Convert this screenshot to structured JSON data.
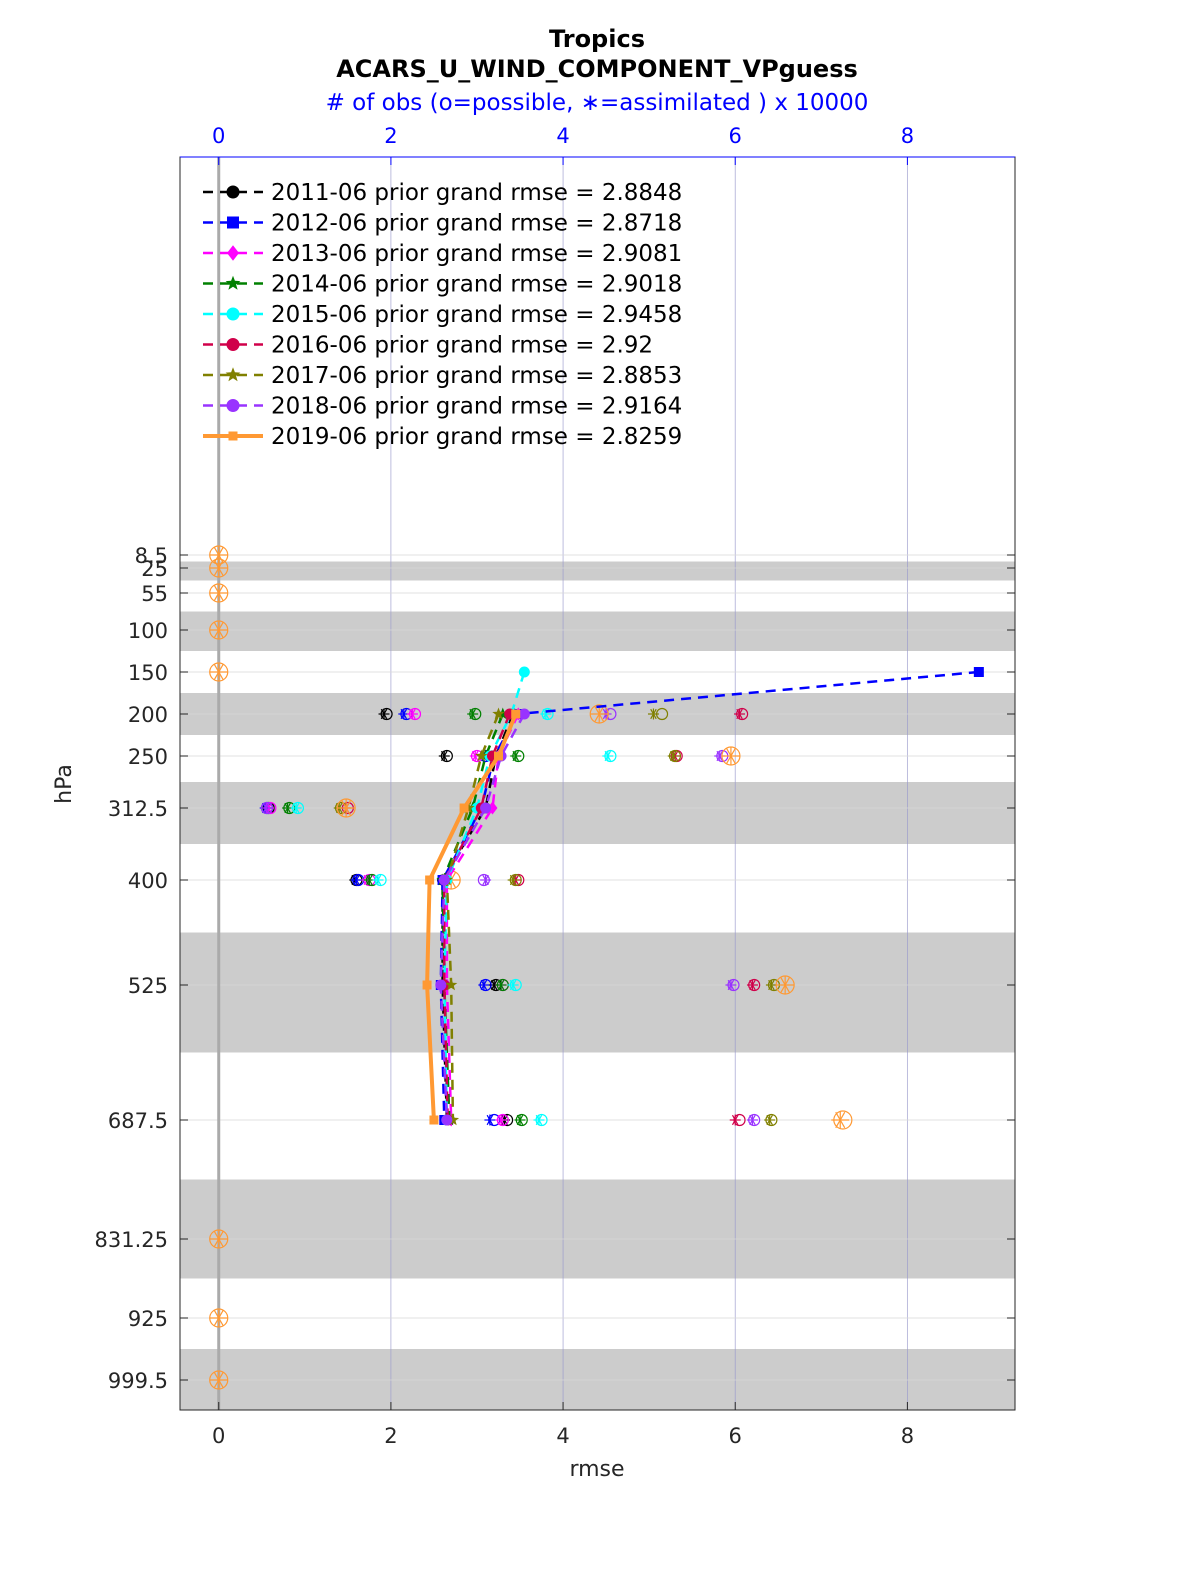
{
  "chart_data": {
    "type": "line",
    "title": "Tropics",
    "subtitle": "ACARS_U_WIND_COMPONENT_VPguess",
    "top_axis_label": "# of obs (o=possible, ∗=assimilated ) x 10000",
    "xlabel": "rmse",
    "ylabel": "hPa",
    "xlim": [
      -0.45,
      9.25
    ],
    "x_ticks": [
      0,
      2,
      4,
      6,
      8
    ],
    "top_xlim": [
      -0.45,
      9.25
    ],
    "top_x_ticks": [
      0,
      2,
      4,
      6,
      8
    ],
    "y_reversed": true,
    "levels": [
      8.5,
      25,
      55,
      100,
      150,
      200,
      250,
      312.5,
      400,
      525,
      687.5,
      831.25,
      925,
      999.5
    ],
    "level_tick_labels": [
      "8.5",
      "25",
      "55",
      "100",
      "150",
      "200",
      "250",
      "312.5",
      "400",
      "525",
      "687.5",
      "831.25",
      "925",
      "999.5"
    ],
    "grid": true,
    "legend_position": "top-left",
    "series": [
      {
        "name": "2011-06 prior grand rmse = 2.8848",
        "color": "#000000",
        "style": "dashed",
        "marker": "circle",
        "rmse_levels": [
          200,
          250,
          312.5,
          400,
          525,
          687.5
        ],
        "rmse": [
          3.42,
          3.22,
          3.1,
          2.6,
          2.6,
          2.65
        ],
        "obs_levels": [
          200,
          250,
          312.5,
          400,
          525,
          687.5
        ],
        "possible": [
          1.95,
          2.65,
          0.58,
          1.6,
          3.22,
          3.35
        ],
        "assimilated": [
          1.92,
          2.62,
          0.56,
          1.58,
          3.2,
          3.32
        ]
      },
      {
        "name": "2012-06 prior grand rmse = 2.8718",
        "color": "#0000ff",
        "style": "dashed",
        "marker": "square",
        "rmse_levels": [
          150,
          200,
          250,
          312.5,
          400,
          525,
          687.5
        ],
        "rmse": [
          8.83,
          3.48,
          3.2,
          3.05,
          2.6,
          2.58,
          2.62
        ],
        "obs_levels": [
          200,
          250,
          312.5,
          400,
          525,
          687.5
        ],
        "possible": [
          2.18,
          3.1,
          0.56,
          1.62,
          3.1,
          3.2
        ],
        "assimilated": [
          2.15,
          3.08,
          0.54,
          1.6,
          3.08,
          3.15
        ]
      },
      {
        "name": "2013-06 prior grand rmse = 2.9081",
        "color": "#ff00ff",
        "style": "dashed",
        "marker": "diamond",
        "rmse_levels": [
          200,
          250,
          312.5,
          400,
          525,
          687.5
        ],
        "rmse": [
          3.48,
          3.25,
          3.18,
          2.65,
          2.65,
          2.7
        ],
        "obs_levels": [
          200,
          250,
          312.5,
          400,
          525,
          687.5
        ],
        "possible": [
          2.28,
          3.0,
          0.6,
          1.75,
          3.3,
          3.3
        ],
        "assimilated": [
          2.25,
          2.98,
          0.58,
          1.72,
          3.28,
          3.28
        ]
      },
      {
        "name": "2014-06 prior grand rmse = 2.9018",
        "color": "#008000",
        "style": "dashed",
        "marker": "star",
        "rmse_levels": [
          200,
          250,
          312.5,
          400,
          525,
          687.5
        ],
        "rmse": [
          3.3,
          3.1,
          2.95,
          2.6,
          2.62,
          2.68
        ],
        "obs_levels": [
          200,
          250,
          312.5,
          400,
          525,
          687.5
        ],
        "possible": [
          2.98,
          3.48,
          0.82,
          1.78,
          3.3,
          3.52
        ],
        "assimilated": [
          2.95,
          3.45,
          0.8,
          1.75,
          3.28,
          3.5
        ]
      },
      {
        "name": "2015-06 prior grand rmse = 2.9458",
        "color": "#00ffff",
        "style": "dashed",
        "marker": "hexagram",
        "rmse_levels": [
          150,
          200,
          250,
          312.5,
          400,
          525,
          687.5
        ],
        "rmse": [
          3.55,
          3.4,
          3.15,
          3.0,
          2.65,
          2.62,
          2.65
        ],
        "obs_levels": [
          200,
          250,
          312.5,
          400,
          525,
          687.5
        ],
        "possible": [
          3.82,
          4.55,
          0.92,
          1.88,
          3.45,
          3.75
        ],
        "assimilated": [
          3.8,
          4.52,
          0.9,
          1.85,
          3.42,
          3.72
        ]
      },
      {
        "name": "2016-06 prior grand rmse = 2.92",
        "color": "#d0004a",
        "style": "dashed",
        "marker": "circle",
        "rmse_levels": [
          200,
          250,
          312.5,
          400,
          525,
          687.5
        ],
        "rmse": [
          3.38,
          3.18,
          3.05,
          2.62,
          2.62,
          2.66
        ],
        "obs_levels": [
          200,
          250,
          312.5,
          400,
          525,
          687.5
        ],
        "possible": [
          6.08,
          5.32,
          1.5,
          3.48,
          6.22,
          6.05
        ],
        "assimilated": [
          6.05,
          5.3,
          1.48,
          3.45,
          6.2,
          6.0
        ]
      },
      {
        "name": "2017-06 prior grand rmse = 2.8853",
        "color": "#808000",
        "style": "dashed",
        "marker": "star",
        "rmse_levels": [
          200,
          250,
          312.5,
          400,
          525,
          687.5
        ],
        "rmse": [
          3.25,
          3.05,
          2.9,
          2.65,
          2.7,
          2.72
        ],
        "obs_levels": [
          200,
          250,
          312.5,
          400,
          525,
          687.5
        ],
        "possible": [
          5.15,
          5.3,
          1.42,
          3.45,
          6.45,
          6.42
        ],
        "assimilated": [
          5.05,
          5.28,
          1.4,
          3.42,
          6.42,
          6.4
        ]
      },
      {
        "name": "2018-06 prior grand rmse = 2.9164",
        "color": "#9933ff",
        "style": "dashed",
        "marker": "circle",
        "rmse_levels": [
          200,
          250,
          312.5,
          400,
          525,
          687.5
        ],
        "rmse": [
          3.55,
          3.28,
          3.1,
          2.62,
          2.58,
          2.65
        ],
        "obs_levels": [
          200,
          250,
          312.5,
          400,
          525,
          687.5
        ],
        "possible": [
          4.55,
          5.85,
          0.56,
          3.08,
          5.98,
          6.22
        ],
        "assimilated": [
          4.5,
          5.82,
          0.55,
          3.1,
          5.95,
          6.2
        ]
      },
      {
        "name": "2019-06 prior grand rmse = 2.8259",
        "color": "#ff9933",
        "style": "solid",
        "marker": "square",
        "rmse_levels": [
          200,
          250,
          312.5,
          400,
          525,
          687.5
        ],
        "rmse": [
          3.45,
          3.25,
          2.85,
          2.45,
          2.42,
          2.5
        ],
        "obs_levels": [
          8.5,
          25,
          55,
          100,
          150,
          200,
          250,
          312.5,
          400,
          525,
          687.5,
          831.25,
          925,
          999.5
        ],
        "possible": [
          0,
          0,
          0,
          0,
          0,
          4.42,
          5.95,
          1.48,
          2.7,
          6.58,
          7.25,
          0,
          0,
          0
        ],
        "assimilated": [
          0,
          0,
          0,
          0,
          0,
          4.42,
          5.95,
          1.48,
          2.7,
          6.58,
          7.22,
          0,
          0,
          0
        ]
      }
    ]
  }
}
